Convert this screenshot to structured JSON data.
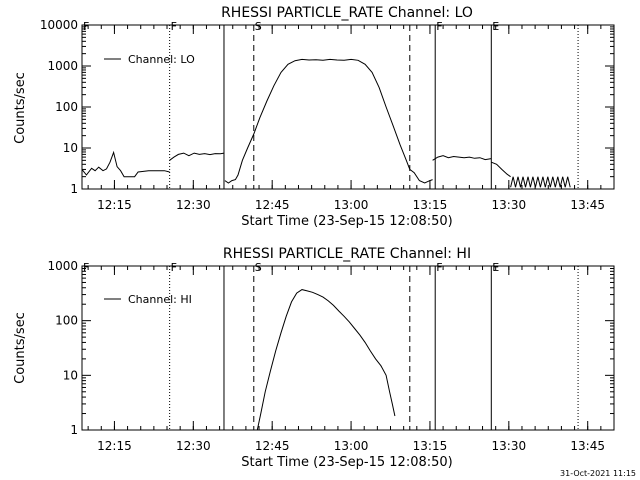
{
  "footer": {
    "timestamp": "31-Oct-2021 11:15"
  },
  "chart_data": [
    {
      "type": "line",
      "title": "RHESSI PARTICLE_RATE Channel: LO",
      "xlabel": "Start Time (23-Sep-15 12:08:50)",
      "ylabel": "Counts/sec",
      "yscale": "log",
      "xlim": [
        "12:08:50",
        "13:50:00"
      ],
      "ylim": [
        1,
        10000
      ],
      "x_ticks": [
        "12:15",
        "12:30",
        "12:45",
        "13:00",
        "13:15",
        "13:30",
        "13:45"
      ],
      "y_ticks": [
        "1",
        "10",
        "100",
        "1000",
        "10000"
      ],
      "legend": {
        "position": "top-left",
        "entries": [
          "Channel: LO"
        ]
      },
      "markers": [
        {
          "label": "F",
          "time": "12:08:50",
          "style": "dotted"
        },
        {
          "label": "F",
          "time": "12:25:30",
          "style": "dotted"
        },
        {
          "label": "",
          "time": "12:35:50",
          "style": "solid"
        },
        {
          "label": "S",
          "time": "12:41:30",
          "style": "dashed"
        },
        {
          "label": "",
          "time": "13:11:10",
          "style": "dashed"
        },
        {
          "label": "F",
          "time": "13:16:00",
          "style": "solid"
        },
        {
          "label": "E",
          "time": "13:26:40",
          "style": "solid"
        },
        {
          "label": "",
          "time": "13:43:10",
          "style": "dotted"
        }
      ],
      "series": [
        {
          "name": "Channel: LO",
          "segments": [
            {
              "x": [
                "12:08:50",
                "12:09:40",
                "12:10:40",
                "12:11:20",
                "12:12:00",
                "12:12:50",
                "12:13:30",
                "12:14:10",
                "12:14:50",
                "12:15:30",
                "12:16:10",
                "12:16:50",
                "12:17:30",
                "12:18:10",
                "12:18:50",
                "12:19:30",
                "12:21:30",
                "12:23:00",
                "12:24:30",
                "12:25:30"
              ],
              "y": [
                3,
                2.2,
                3.2,
                2.8,
                3.4,
                2.8,
                3.1,
                4.5,
                7.8,
                3.5,
                2.8,
                2,
                2,
                2,
                2,
                2.6,
                2.8,
                2.8,
                2.8,
                2.6
              ]
            },
            {
              "x": [
                "12:25:30",
                "12:26:20",
                "12:27:10",
                "12:28:10",
                "12:29:10",
                "12:30:10",
                "12:31:10",
                "12:32:10",
                "12:33:10",
                "12:34:10",
                "12:35:10",
                "12:35:50"
              ],
              "y": [
                5,
                6,
                7,
                7.5,
                6.5,
                7.5,
                7,
                7.3,
                6.9,
                7.3,
                7.2,
                7.5
              ]
            },
            {
              "x": [
                "12:36:00",
                "12:36:40",
                "12:37:20",
                "12:38:00",
                "12:38:30",
                "12:39:20",
                "12:40:20",
                "12:41:30",
                "12:42:40",
                "12:44:00",
                "12:45:20",
                "12:46:40",
                "12:48:00",
                "12:49:20",
                "12:50:40",
                "12:52:00",
                "12:53:20",
                "12:54:40",
                "12:56:00",
                "12:57:20",
                "12:58:40",
                "13:00:00",
                "13:01:20",
                "13:02:40",
                "13:04:00",
                "13:05:20",
                "13:06:40",
                "13:08:00",
                "13:09:20",
                "13:10:30",
                "13:11:10"
              ],
              "y": [
                1.6,
                1.4,
                1.6,
                1.7,
                2.2,
                5,
                10,
                22,
                55,
                140,
                330,
                700,
                1100,
                1350,
                1450,
                1400,
                1420,
                1380,
                1450,
                1400,
                1380,
                1450,
                1380,
                1100,
                700,
                300,
                100,
                35,
                12,
                5,
                3
              ]
            },
            {
              "x": [
                "13:11:10",
                "13:12:00",
                "13:13:00",
                "13:14:00",
                "13:15:00",
                "13:15:30"
              ],
              "y": [
                3,
                2.5,
                1.6,
                1.4,
                1.6,
                1.7
              ]
            },
            {
              "x": [
                "13:15:30",
                "13:16:30",
                "13:17:30",
                "13:18:30",
                "13:19:30",
                "13:20:30",
                "13:21:30",
                "13:22:30",
                "13:23:30",
                "13:24:30",
                "13:25:30",
                "13:26:40"
              ],
              "y": [
                5,
                6,
                6.5,
                5.8,
                6.2,
                6,
                5.8,
                6,
                5.6,
                5.8,
                5.2,
                5.5
              ]
            },
            {
              "x": [
                "13:26:40",
                "13:27:40",
                "13:28:40",
                "13:29:40",
                "13:30:20"
              ],
              "y": [
                4.5,
                4,
                3,
                2.3,
                2
              ]
            },
            {
              "x": [
                "13:30:20",
                "13:41:40"
              ],
              "y": [
                1.1,
                2
              ],
              "note": ""
            }
          ]
        }
      ]
    },
    {
      "type": "line",
      "title": "RHESSI PARTICLE_RATE Channel: HI",
      "xlabel": "Start Time (23-Sep-15 12:08:50)",
      "ylabel": "Counts/sec",
      "yscale": "log",
      "xlim": [
        "12:08:50",
        "13:50:00"
      ],
      "ylim": [
        1,
        1000
      ],
      "x_ticks": [
        "12:15",
        "12:30",
        "12:45",
        "13:00",
        "13:15",
        "13:30",
        "13:45"
      ],
      "y_ticks": [
        "1",
        "10",
        "100",
        "1000"
      ],
      "legend": {
        "position": "top-left",
        "entries": [
          "Channel: HI"
        ]
      },
      "markers": [
        {
          "label": "F",
          "time": "12:08:50",
          "style": "dotted"
        },
        {
          "label": "F",
          "time": "12:25:30",
          "style": "dotted"
        },
        {
          "label": "",
          "time": "12:35:50",
          "style": "solid"
        },
        {
          "label": "S",
          "time": "12:41:30",
          "style": "dashed"
        },
        {
          "label": "",
          "time": "13:11:10",
          "style": "dashed"
        },
        {
          "label": "F",
          "time": "13:16:00",
          "style": "solid"
        },
        {
          "label": "E",
          "time": "13:26:40",
          "style": "solid"
        },
        {
          "label": "",
          "time": "13:43:10",
          "style": "dotted"
        }
      ],
      "series": [
        {
          "name": "Channel: HI",
          "segments": [
            {
              "x": [
                "12:42:10",
                "12:42:50",
                "12:43:40",
                "12:44:40",
                "12:45:40",
                "12:46:40",
                "12:47:40",
                "12:48:40",
                "12:49:40",
                "12:50:40",
                "12:51:40",
                "12:52:40",
                "12:53:40",
                "12:54:40",
                "12:55:40",
                "12:56:40",
                "12:57:40",
                "12:58:40",
                "12:59:40",
                "13:00:40",
                "13:01:40",
                "13:02:40",
                "13:03:40",
                "13:04:40",
                "13:05:40",
                "13:06:40",
                "13:07:20",
                "13:07:50",
                "13:08:20"
              ],
              "y": [
                1,
                2,
                5,
                12,
                28,
                60,
                120,
                220,
                320,
                370,
                350,
                330,
                300,
                270,
                230,
                190,
                150,
                120,
                95,
                72,
                55,
                40,
                28,
                20,
                15,
                10,
                5,
                3,
                1.8
              ]
            }
          ]
        }
      ]
    }
  ]
}
